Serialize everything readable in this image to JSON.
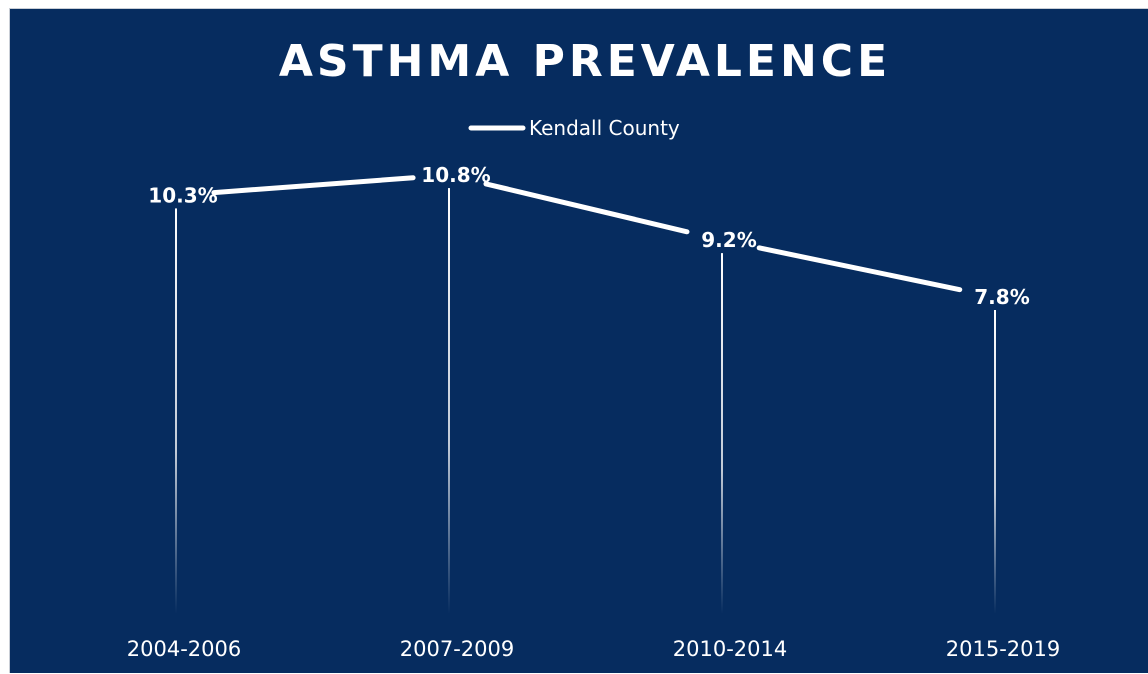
{
  "chart_data": {
    "type": "line",
    "title": "ASTHMA PREVALENCE",
    "categories": [
      "2004-2006",
      "2007-2009",
      "2010-2014",
      "2015-2019"
    ],
    "series": [
      {
        "name": "Kendall County",
        "values": [
          10.3,
          10.8,
          9.2,
          7.8
        ],
        "labels": [
          "10.3%",
          "10.8%",
          "9.2%",
          "7.8%"
        ]
      }
    ],
    "xlabel": "",
    "ylabel": "",
    "ylim": [
      0,
      12.5
    ],
    "grid": false,
    "legend_position": "top",
    "colors": {
      "background": "#062c5f",
      "line": "#ffffff",
      "text": "#ffffff"
    }
  }
}
